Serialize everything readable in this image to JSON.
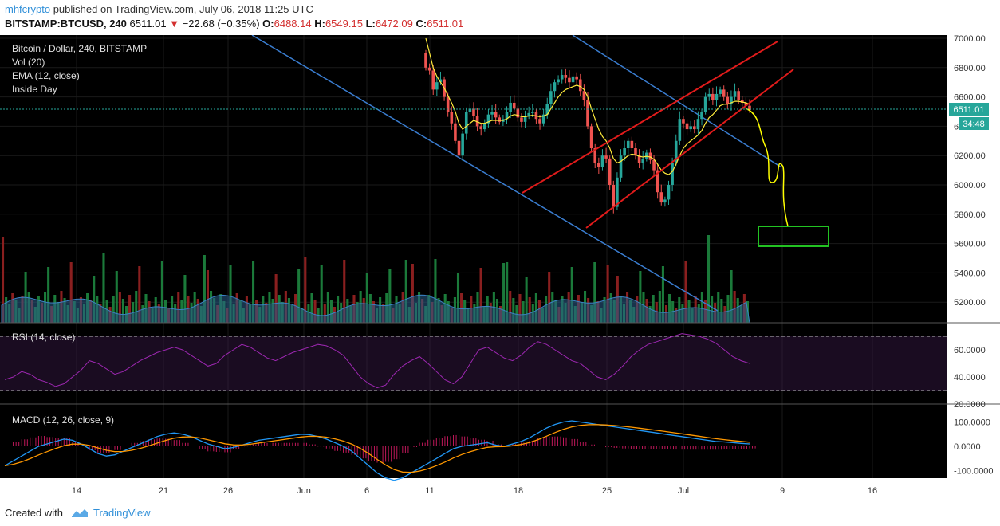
{
  "header": {
    "author": "mhfcrypto",
    "published_text": "published on TradingView.com, July 06, 2018 11:25 UTC",
    "symbol": "BITSTAMP:BTCUSD, 240",
    "last": "6511.01",
    "change": "−22.68 (−0.35%)",
    "open_label": "O:",
    "open": "6488.14",
    "high_label": "H:",
    "high": "6549.15",
    "low_label": "L:",
    "low": "6472.09",
    "close_label": "C:",
    "close": "6511.01"
  },
  "legend": {
    "title": "Bitcoin / Dollar, 240, BITSTAMP",
    "vol": "Vol (20)",
    "ema": "EMA (12, close)",
    "inside": "Inside Day",
    "rsi": "RSI (14, close)",
    "macd": "MACD (12, 26, close, 9)"
  },
  "badges": {
    "price": "6511.01",
    "countdown": "34:48"
  },
  "footer": {
    "created": "Created with",
    "brand": "TradingView"
  },
  "colors": {
    "background": "#000000",
    "up": "#26a69a",
    "down": "#ef5350",
    "ema": "#ffeb3b",
    "channel": "#e01b1b",
    "trendline": "#3a7dd0",
    "rsi": "#9c27b0",
    "macd": "#2196f3",
    "signal": "#ff9800",
    "histogram": "#c2185b",
    "target_box": "#2e7d32"
  },
  "chart_data": {
    "type": "candlestick",
    "price_axis": {
      "ticks": [
        "7000.00",
        "6800.00",
        "6600.00",
        "6400.00",
        "6200.00",
        "6000.00",
        "5800.00",
        "5600.00",
        "5400.00",
        "5200.00"
      ]
    },
    "time_axis": {
      "ticks": [
        "14",
        "21",
        "26",
        "Jun",
        "6",
        "11",
        "18",
        "25",
        "Jul",
        "9",
        "16"
      ]
    },
    "rsi_axis": {
      "ticks": [
        "60.0000",
        "40.0000",
        "20.0000"
      ],
      "bands": [
        70,
        30
      ]
    },
    "macd_axis": {
      "ticks": [
        "100.0000",
        "0.0000",
        "-100.0000"
      ]
    },
    "candle_closes": [
      6800,
      6780,
      6650,
      6700,
      6720,
      6600,
      6500,
      6420,
      6300,
      6200,
      6350,
      6500,
      6520,
      6470,
      6400,
      6380,
      6420,
      6480,
      6500,
      6460,
      6430,
      6450,
      6500,
      6560,
      6520,
      6460,
      6430,
      6470,
      6490,
      6500,
      6450,
      6420,
      6480,
      6550,
      6640,
      6700,
      6720,
      6750,
      6730,
      6700,
      6740,
      6720,
      6640,
      6580,
      6400,
      6250,
      6150,
      6120,
      6200,
      6180,
      6000,
      5850,
      6050,
      6200,
      6250,
      6300,
      6250,
      6200,
      6150,
      6180,
      6220,
      6170,
      6100,
      5950,
      5880,
      5900,
      6000,
      6150,
      6300,
      6450,
      6420,
      6380,
      6400,
      6380,
      6450,
      6500,
      6600,
      6620,
      6580,
      6620,
      6650,
      6600,
      6550,
      6600,
      6640,
      6580,
      6560,
      6540,
      6511
    ],
    "ema": [
      7000,
      6900,
      6800,
      6740,
      6700,
      6660,
      6610,
      6560,
      6500,
      6420,
      6380,
      6400,
      6420,
      6440,
      6430,
      6420,
      6420,
      6430,
      6440,
      6440,
      6440,
      6440,
      6450,
      6470,
      6480,
      6475,
      6465,
      6465,
      6470,
      6475,
      6470,
      6465,
      6470,
      6480,
      6520,
      6560,
      6600,
      6630,
      6650,
      6660,
      6670,
      6680,
      6670,
      6650,
      6600,
      6520,
      6450,
      6380,
      6330,
      6300,
      6250,
      6180,
      6150,
      6160,
      6180,
      6200,
      6210,
      6205,
      6195,
      6190,
      6195,
      6190,
      6175,
      6140,
      6100,
      6080,
      6070,
      6090,
      6140,
      6200,
      6250,
      6280,
      6300,
      6320,
      6340,
      6370,
      6420,
      6460,
      6480,
      6510,
      6540,
      6550,
      6550,
      6560,
      6570,
      6570,
      6565,
      6560,
      6550
    ],
    "current_price": 6511.01,
    "rising_channel": {
      "upper": [
        [
          6150,
          "22-Jun"
        ],
        [
          6970,
          "7-Jul"
        ]
      ],
      "lower": [
        [
          5700,
          "23-Jun"
        ],
        [
          6780,
          "9-Jul"
        ]
      ]
    },
    "projection_path": [
      6511,
      6440,
      6300,
      6180,
      6030,
      6100,
      6160,
      6000,
      5800,
      5720
    ],
    "target_zone": {
      "low": 5580,
      "high": 5720
    },
    "rsi": [
      38,
      40,
      44,
      42,
      38,
      36,
      33,
      35,
      40,
      45,
      52,
      50,
      46,
      42,
      44,
      48,
      52,
      55,
      58,
      60,
      62,
      60,
      56,
      52,
      48,
      50,
      56,
      60,
      64,
      62,
      58,
      54,
      52,
      55,
      58,
      60,
      62,
      64,
      63,
      60,
      56,
      48,
      40,
      35,
      32,
      34,
      42,
      48,
      52,
      55,
      50,
      44,
      38,
      35,
      40,
      50,
      60,
      62,
      58,
      54,
      52,
      56,
      62,
      66,
      64,
      60,
      56,
      52,
      50,
      45,
      40,
      38,
      42,
      48,
      55,
      60,
      64,
      66,
      68,
      70,
      72,
      71,
      70,
      68,
      65,
      60,
      55,
      52,
      50
    ],
    "macd": [
      -80,
      -60,
      -40,
      -20,
      0,
      10,
      20,
      30,
      25,
      10,
      -10,
      -30,
      -40,
      -35,
      -20,
      -5,
      10,
      25,
      40,
      50,
      55,
      50,
      40,
      25,
      10,
      0,
      -10,
      -5,
      5,
      15,
      25,
      30,
      35,
      40,
      45,
      50,
      48,
      40,
      30,
      15,
      0,
      -20,
      -50,
      -80,
      -110,
      -130,
      -140,
      -130,
      -110,
      -90,
      -70,
      -50,
      -30,
      -10,
      0,
      5,
      10,
      15,
      5,
      0,
      10,
      20,
      35,
      55,
      75,
      90,
      100,
      105,
      100,
      95,
      90,
      85,
      80,
      75,
      70,
      65,
      60,
      55,
      50,
      45,
      40,
      35,
      30,
      25,
      20,
      18,
      15,
      12,
      10
    ]
  }
}
